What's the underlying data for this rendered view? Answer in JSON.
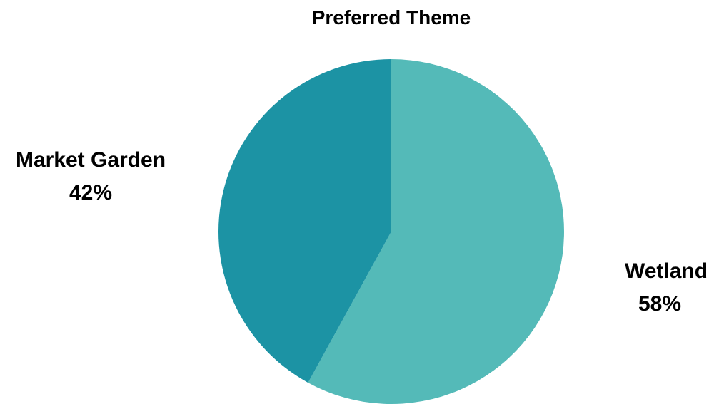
{
  "chart_data": {
    "type": "pie",
    "title": "Preferred Theme",
    "slices": [
      {
        "label": "Wetland",
        "value": 58,
        "value_label": "58%",
        "color": "#54BAB8"
      },
      {
        "label": "Market Garden",
        "value": 42,
        "value_label": "42%",
        "color": "#1C93A4"
      }
    ],
    "start_angle": "12 o'clock",
    "direction": "clockwise",
    "legend": "none"
  }
}
